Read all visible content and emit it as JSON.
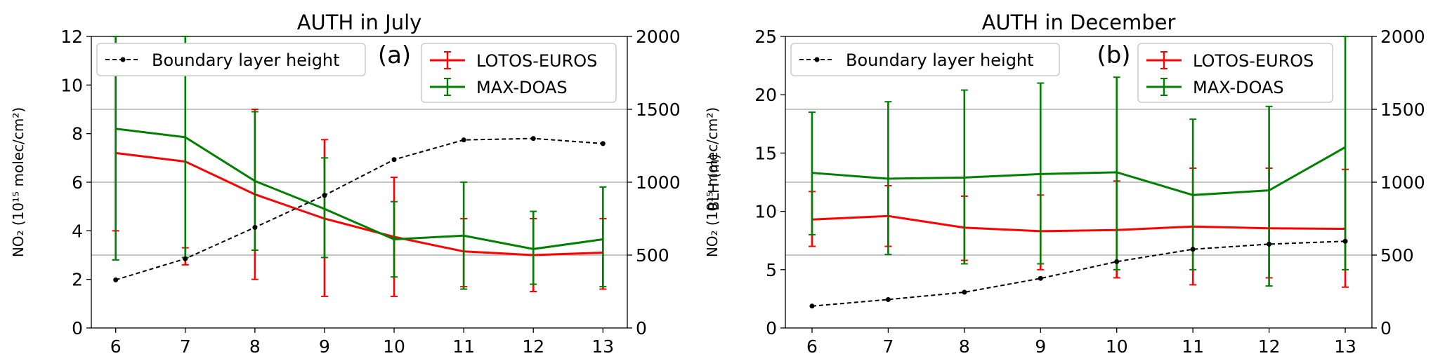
{
  "chart_data": [
    {
      "type": "line",
      "title": "AUTH in July",
      "panel_label": "(a)",
      "ylabel_left": "NO₂ (10¹⁵ molec/cm²)",
      "ylabel_right": "BLH (m)",
      "x": [
        6,
        7,
        8,
        9,
        10,
        11,
        12,
        13
      ],
      "ylim_left": [
        0,
        12
      ],
      "yticks_left": [
        0,
        2,
        4,
        6,
        8,
        10,
        12
      ],
      "ylim_right": [
        0,
        2000
      ],
      "yticks_right": [
        0,
        500,
        1000,
        1500,
        2000
      ],
      "grid": "horizontal, right axis",
      "legend_right": "upper center-right",
      "legend_left": "upper left",
      "series": [
        {
          "name": "LOTOS-EUROS",
          "color": "#ff0000",
          "axis": "left",
          "values": [
            7.2,
            6.85,
            5.5,
            4.5,
            3.75,
            3.15,
            3.0,
            3.1
          ],
          "err_low": [
            4.0,
            2.6,
            2.0,
            1.3,
            1.3,
            1.7,
            1.5,
            1.6
          ],
          "err_high": [
            12.0,
            3.3,
            9.0,
            7.75,
            6.2,
            4.5,
            4.5,
            4.5
          ]
        },
        {
          "name": "MAX-DOAS",
          "color": "#008000",
          "axis": "left",
          "values": [
            8.2,
            7.85,
            6.05,
            4.9,
            3.65,
            3.8,
            3.25,
            3.65
          ],
          "err_low": [
            2.8,
            2.9,
            3.2,
            2.9,
            2.1,
            1.6,
            1.8,
            1.7
          ],
          "err_high": [
            12.0,
            12.0,
            8.9,
            7.0,
            5.2,
            6.0,
            4.8,
            5.8
          ]
        },
        {
          "name": "Boundary layer height",
          "color": "#000000",
          "axis": "right",
          "style": "dashed",
          "values": [
            330,
            475,
            690,
            910,
            1155,
            1290,
            1300,
            1265
          ]
        }
      ]
    },
    {
      "type": "line",
      "title": "AUTH in December",
      "panel_label": "(b)",
      "ylabel_left": "NO₂ (10¹⁵ molec/cm²)",
      "ylabel_right": "BLH (m)",
      "x": [
        6,
        7,
        8,
        9,
        10,
        11,
        12,
        13
      ],
      "ylim_left": [
        0,
        25
      ],
      "yticks_left": [
        0,
        5,
        10,
        15,
        20,
        25
      ],
      "ylim_right": [
        0,
        2000
      ],
      "yticks_right": [
        0,
        500,
        1000,
        1500,
        2000
      ],
      "grid": "horizontal, right axis",
      "legend_right": "upper center-right",
      "legend_left": "upper left",
      "series": [
        {
          "name": "LOTOS-EUROS",
          "color": "#ff0000",
          "axis": "left",
          "values": [
            9.3,
            9.6,
            8.6,
            8.3,
            8.4,
            8.7,
            8.55,
            8.5
          ],
          "err_low": [
            7.0,
            7.0,
            5.8,
            5.0,
            4.3,
            3.7,
            4.3,
            3.5
          ],
          "err_high": [
            11.7,
            12.2,
            11.3,
            11.4,
            12.6,
            13.7,
            13.7,
            13.6
          ]
        },
        {
          "name": "MAX-DOAS",
          "color": "#008000",
          "axis": "left",
          "values": [
            13.3,
            12.8,
            12.9,
            13.2,
            13.35,
            11.4,
            11.8,
            15.5
          ],
          "err_low": [
            8.0,
            6.3,
            5.5,
            5.5,
            5.0,
            5.0,
            3.6,
            5.0
          ],
          "err_high": [
            18.5,
            19.4,
            20.4,
            21.0,
            21.5,
            17.9,
            19.0,
            25.0
          ]
        },
        {
          "name": "Boundary layer height",
          "color": "#000000",
          "axis": "right",
          "style": "dashed",
          "values": [
            150,
            195,
            245,
            340,
            455,
            540,
            575,
            595
          ]
        }
      ]
    }
  ]
}
